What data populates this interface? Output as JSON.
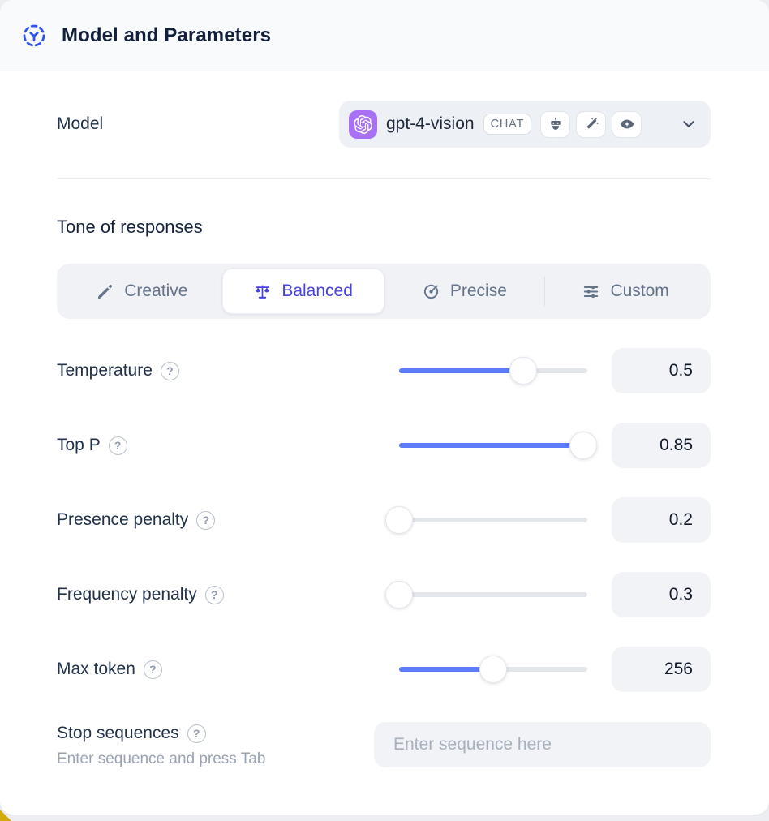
{
  "header": {
    "title": "Model and Parameters",
    "icon": "model-hub-icon"
  },
  "model_row": {
    "label": "Model",
    "selected_model": "gpt-4-vision",
    "type_badge": "CHAT",
    "provider_icon": "openai-logo",
    "capability_icons": [
      "robot-icon",
      "magic-wand-icon",
      "vision-eye-icon"
    ],
    "expander_icon": "chevron-down-icon"
  },
  "tone": {
    "heading": "Tone of responses",
    "options": [
      {
        "label": "Creative",
        "icon": "paintbrush-icon",
        "selected": false
      },
      {
        "label": "Balanced",
        "icon": "scales-icon",
        "selected": true
      },
      {
        "label": "Precise",
        "icon": "target-icon",
        "selected": false
      },
      {
        "label": "Custom",
        "icon": "sliders-icon",
        "selected": false
      }
    ]
  },
  "parameters": [
    {
      "label": "Temperature",
      "value": "0.5",
      "slider_percent": 66
    },
    {
      "label": "Top P",
      "value": "0.85",
      "slider_percent": 98
    },
    {
      "label": "Presence penalty",
      "value": "0.2",
      "slider_percent": 0
    },
    {
      "label": "Frequency penalty",
      "value": "0.3",
      "slider_percent": 0
    },
    {
      "label": "Max token",
      "value": "256",
      "slider_percent": 50
    }
  ],
  "stop_sequences": {
    "label": "Stop sequences",
    "hint": "Enter sequence and press Tab",
    "placeholder": "Enter sequence here"
  },
  "colors": {
    "accent_blue": "#2f54eb",
    "slider_blue": "#5c7cfa",
    "selected_indigo": "#4744dd",
    "openai_purple": "#a871f5",
    "header_bg": "#f8fafc",
    "control_bg": "#f0f2f6",
    "text_dark": "#13203a",
    "text_gray": "#64748b",
    "corner_yellow": "#d4a90f"
  }
}
